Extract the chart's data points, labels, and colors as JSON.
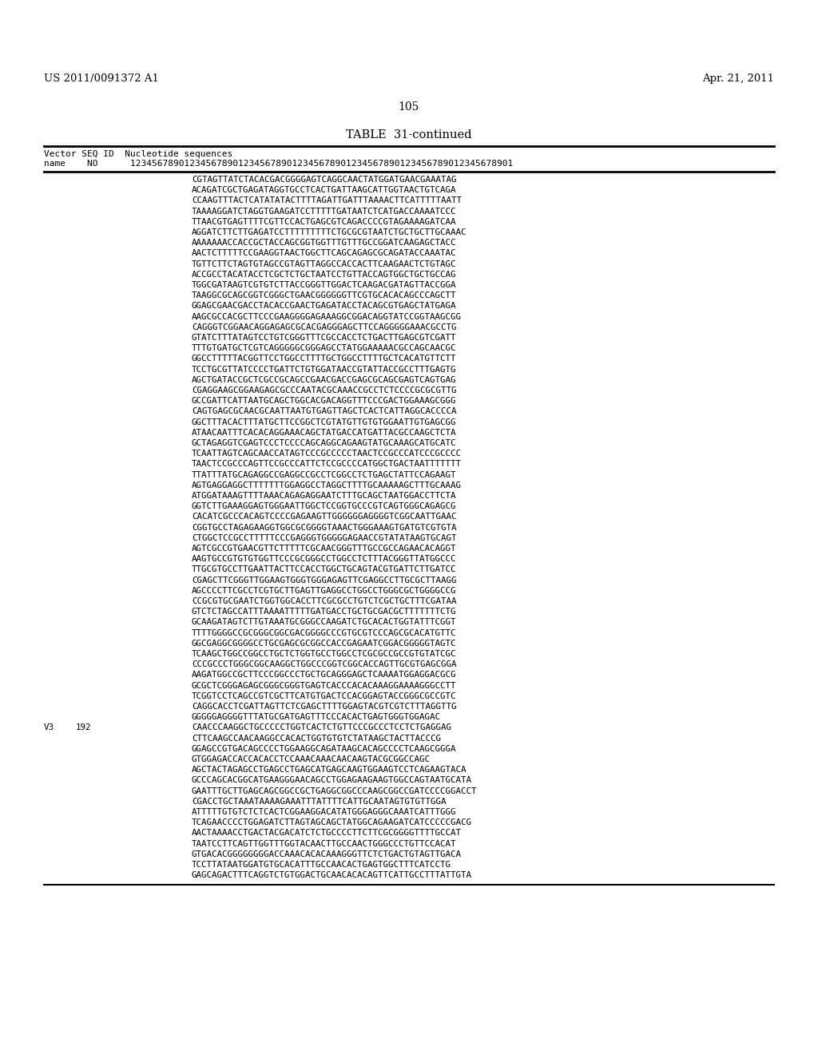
{
  "patent_number": "US 2011/0091372 A1",
  "date": "Apr. 21, 2011",
  "page_number": "105",
  "table_title": "TABLE  31-continued",
  "header_line1": "Vector SEQ ID  Nucleotide sequences",
  "header_line2": "name    NO      12345678901234567890123456789012345678901234567890123456789012345678901",
  "content_lines": [
    "CGTAGTTATCTACACGACGGGGAGTCAGGCAACTATGGATGAACGAAATAG",
    "ACAGATCGCTGAGATAGGTGCCTCACTGATTAAGCATTGGTAACTGTCAGA",
    "CCAAGTTTACTCATATATACTTTTAGATTGATTTAAAACTTCATTTTTAATT",
    "TAAAAGGATCTAGGTGAAGATCCTTTTTGATAATCTCATGACCAAAATCCC",
    "TTAACGTGAGTTTTCGTTCCACTGAGCGTCAGACCCCGTAGAAAAGATCAA",
    "AGGATCTTCTTGAGATCCTTTTTTTTTCTGCGCGTAATCTGCTGCTTGCAAAC",
    "AAAAAAACCACCGCTACCAGCGGTGGTTTGTTTGCCGGATCAAGAGCTACC",
    "AACTCTTTTTCCGAAGGTAACTGGCTTCAGCAGAGCGCAGATACCAAATAC",
    "TGTTCTTCTAGTGTAGCCGTAGTTAGGCCACCACTTCAAGAACTCTGTAGC",
    "ACCGCCTACATACCTCGCTCTGCTAATCCTGTTACCAGTGGCTGCTGCCAG",
    "TGGCGATAAGTCGTGTCTTACCGGGTTGGACTCAAGACGATAGTTACCGGA",
    "TAAGGCGCAGCGGTCGGGCTGAACGGGGGGTTCGTGCACACAGCCCAGCTT",
    "GGAGCGAACGACCTACACCGAACTGAGATACCTACAGCGTGAGCTATGAGA",
    "AAGCGCCACGCTTCCCGAAGGGGAGAAAGGCGGACAGGTATCCGGTAAGCGG",
    "CAGGGTCGGAACAGGAGAGCGCACGAGGGAGCTTCCAGGGGGAAACGCCTG",
    "GTATCTTTATAGTCCTGTCGGGTTTCGCCACCTCTGACTTGAGCGTCGATT",
    "TTTGTGATGCTCGTCAGGGGGCGGGAGCCTATGGAAAAACGCCAGCAACGC",
    "GGCCTTTTTACGGTTCCTGGCCTTTTGCTGGCCTTTTGCTCACATGTTCTT",
    "TCCTGCGTTATCCCCTGATTCTGTGGATAACCGTATTACCGCCTTTGAGTG",
    "AGCTGATACCGCTCGCCGCAGCCGAACGACCGAGCGCAGCGAGTCAGTGAG",
    "CGAGGAAGCGGAAGAGCGCCCAATACGCAAACCGCCTCTCCCCGCGCGTTG",
    "GCCGATTCATTAATGCAGCTGGCACGACAGGTTTCCCGACTGGAAAGCGGG",
    "CAGTGAGCGCAACGCAATTAATGTGAGTTAGCTCACTCATTAGGCACCCCA",
    "GGCTTTACACTTTATGCTTCCGGCTCGTATGTTGTGTGGAATTGTGAGCGG",
    "ATAACAATTTCACACAGGAAACAGCTATGACCATGATTACGCCAAGCTCTA",
    "GCTAGAGGTCGAGTCCCTCCCCAGCAGGCAGAAGTATGCAAAGCATGCATC",
    "TCAATTAGTCAGCAACCATAGTCCCGCCCCCTAACTCCGCCCATCCCGCCCC",
    "TAACTCCGCCCAGTTCCGCCCATTCTCCGCCCCATGGCTGACTAATTTTTTT",
    "TTATTTATGCAGAGGCCGAGGCCGCCTCGGCCTCTGAGCTATTCCAGAAGT",
    "AGTGAGGAGGCTTTTTTTGGAGGCCTAGGCTTTTGCAAAAAGCTTTGCAAAG",
    "ATGGATAAAGTTTTAAACAGAGAGGAATCTTTGCAGCTAATGGACCTTCTA",
    "GGTCTTGAAAGGAGTGGGAATTGGCTCCGGTGCCCGTCAGTGGGCAGAGCG",
    "CACATCGCCCACAGTCCCCGAGAAGTTGGGGGGAGGGGTCGGCAATTGAAC",
    "CGGTGCCTAGAGAAGGTGGCGCGGGGTAAACTGGGAAAGTGATGTCGTGTA",
    "CTGGCTCCGCCTTTTTCCCGAGGGTGGGGGAGAACCGTATATAAGTGCAGT",
    "AGTCGCCGTGAACGTTCTTTTTCGCAACGGGTTTGCCGCCAGAACACAGGT",
    "AAGTGCCGTGTGTGGTTCCCGCGGGCCTGGCCTCTTTACGGGTTATGGCCC",
    "TTGCGTGCCTTGAATTACTTCCACCTGGCTGCAGTACGTGATTCTTGATCC",
    "CGAGCTTCGGGTTGGAAGTGGGTGGGAGAGTTCGAGGCCTTGCGCTTAAGG",
    "AGCCCCTTCGCCTCGTGCTTGAGTTGAGGCCTGGCCTGGGCGCTGGGGCCG",
    "CCGCGTGCGAATCTGGTGGCACCTTCGCGCCTGTCTCGCTGCTTTCGATAA",
    "GTCTCTAGCCATTTAAAATTTTTGATGACCTGCTGCGACGCTTTTTTTCTG",
    "GCAAGATAGTCTTGTAAATGCGGGCCAAGATCTGCACACTGGTATTTCGGT",
    "TTTTGGGGCCGCGGGCGGCGACGGGGCCCGTGCGTCCCAGCGCACATGTTC",
    "GGCGAGGCGGGGCCTGCGAGCGCGGCCACCGAGAATCGGACGGGGGTAGTC",
    "TCAAGCTGGCCGGCCTGCTCTGGTGCCTGGCCTCGCGCCGCCGTGTATCGC",
    "CCCGCCCTGGGCGGCAAGGCTGGCCCGGTCGGCACCAGTTGCGTGAGCGGA",
    "AAGATGGCCGCTTCCCGGCCCTGCTGCAGGGAGCTCAAAATGGAGGACGCG",
    "GCGCTCGGGAGAGCGGGCGGGTGAGTCACCCACACAAAGGAAAAGGGCCTT",
    "TCGGTCCTCAGCCGTCGCTTCATGTGACTCCACGGAGTACCGGGCGCCGTC",
    "CAGGCACCTCGATTAGTTCTCGAGCTTTTGGAGTACGTCGTCTTTAGGTTG",
    "GGGGGAGGGGTTTATGCGATGAGTTTCCCACACTGAGTGGGTGGAGAC"
  ],
  "v3_label": "V3",
  "v3_no": "192",
  "v3_lines": [
    "CAACCCAAGGCTGCCCCCTGGTCACTCTGTTCCCGCCCTCCTCTGAGGAG",
    "CTTCAAGCCAACAAGGCCACACTGGTGTGTCTATAAGCTACTTACCCG",
    "GGAGCCGTGACAGCCCCTGGAAGGCAGATAAGCACAGCCCCTCAAGCGGGA",
    "GTGGAGACCACCACACCTCCAAACAAACAACAAGTACGCGGCCAGC",
    "AGCTACTAGAGCCTGAGCCTGAGCATGAGCAAGTGGAAGTCCTCAGAAGTACA",
    "GCCCAGCACGGCATGAAGGGAACAGCCTGGAGAAGAAGTGGCCAGTAATGCATA",
    "GAATTTGCTTGAGCAGCGGCCGCTGAGGCGGCCCAAGCGGCCGATCCCCGGACCT",
    "CGACCTGCTAAATAAAAGAAATTTATTTTCATTGCAATAGTGTGTTGGA",
    "ATTTTTGTGTCTCTCACTCGGAAGGACATATGGGAGGGCAAATCATTTGGG",
    "TCAGAACCCCTGGAGATCTTAGTAGCAGCTATGGCAGAAGATCATCCCCCGACG",
    "AACTAAAACCTGACTACGACATCTCTGCCCCTTCTTCGCGGGGTTTTGCCAT",
    "TAATCCTTCAGTTGGTTTGGTACAACTTGCCAACTGGGCCCTGTTCCACAT",
    "GTGACACGGGGGGGGACCAAACACACAAAGGGTTCTCTGACTGTAGTTGACA",
    "TCCTTATAATGGATGTGCACATTTGCCAACACTGAGTGGCTTTCATCCTG",
    "GAGCAGACTTTCAGGTCTGTGGACTGCAACACACAGTTCATTGCCTTTATTGTA"
  ],
  "background_color": "#ffffff",
  "text_color": "#000000",
  "monospace_font": "DejaVu Sans Mono",
  "serif_font": "DejaVu Serif"
}
